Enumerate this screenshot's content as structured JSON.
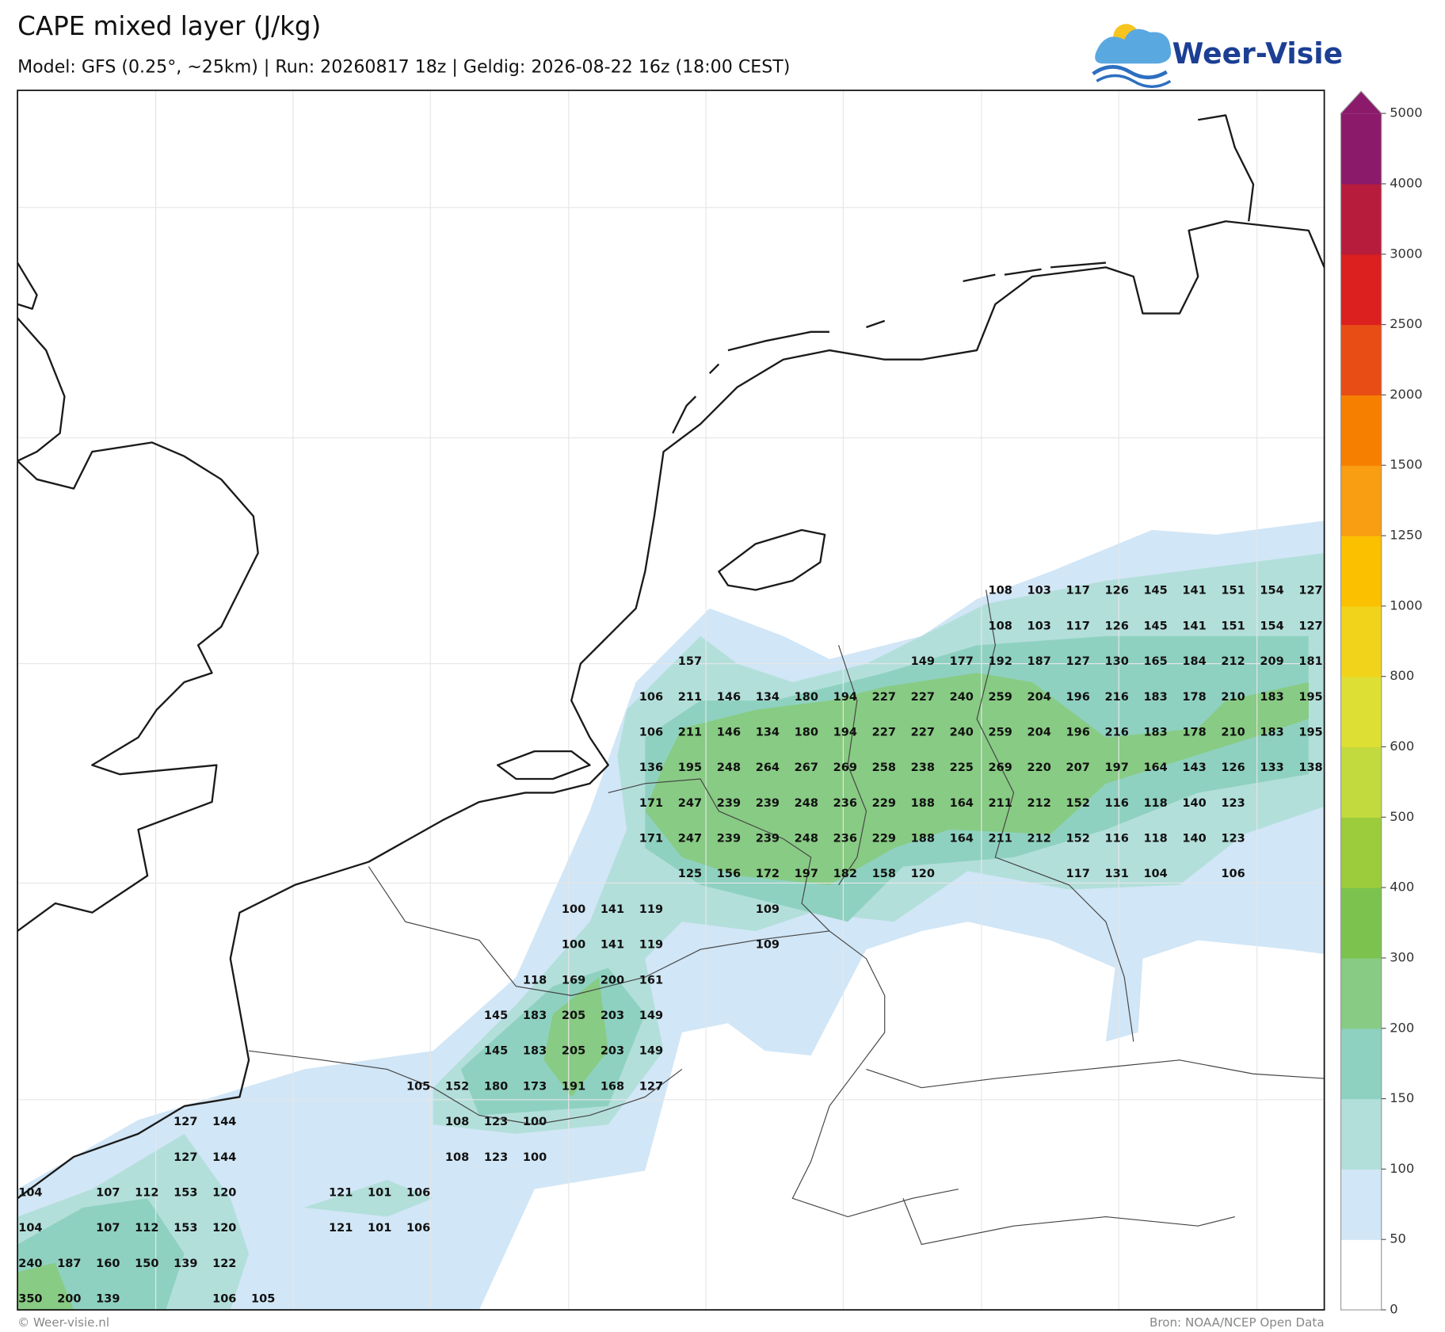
{
  "header": {
    "title": "CAPE mixed layer (J/kg)",
    "subtitle": "Model: GFS (0.25°, ~25km)  |  Run: 20260817 18z  |  Geldig: 2026-08-22 16z (18:00 CEST)"
  },
  "logo": "Weer-Visie",
  "legend": {
    "ticks": [
      0,
      50,
      100,
      150,
      200,
      300,
      400,
      500,
      600,
      800,
      1000,
      1250,
      1500,
      2000,
      2500,
      3000,
      4000,
      5000
    ],
    "colors": [
      "#ffffff",
      "#d1e6f6",
      "#b3dfdb",
      "#8fd1c0",
      "#88cb84",
      "#7bc34e",
      "#9ccc3b",
      "#c3da3f",
      "#dedf34",
      "#f2d31b",
      "#fbc000",
      "#f99d13",
      "#f77f00",
      "#e84d15",
      "#dc1f1f",
      "#b71c3c",
      "#8b1a6b"
    ]
  },
  "values": {
    "rows": [
      [
        null,
        null,
        null,
        null,
        null,
        null,
        null,
        null,
        null,
        null,
        null,
        null,
        null,
        null,
        null,
        null,
        null,
        null,
        null,
        null,
        null,
        null,
        null,
        null,
        null,
        108,
        103,
        117,
        126,
        145,
        141,
        151,
        154,
        127
      ],
      [
        null,
        null,
        null,
        null,
        null,
        null,
        null,
        null,
        null,
        null,
        null,
        null,
        null,
        null,
        null,
        null,
        null,
        null,
        null,
        null,
        null,
        null,
        null,
        null,
        null,
        108,
        103,
        117,
        126,
        145,
        141,
        151,
        154,
        127
      ],
      [
        null,
        null,
        null,
        null,
        null,
        null,
        null,
        null,
        null,
        null,
        null,
        null,
        null,
        null,
        null,
        null,
        null,
        157,
        null,
        null,
        null,
        null,
        null,
        149,
        177,
        192,
        187,
        127,
        130,
        165,
        184,
        212,
        209,
        181
      ],
      [
        null,
        null,
        null,
        null,
        null,
        null,
        null,
        null,
        null,
        null,
        null,
        null,
        null,
        null,
        null,
        null,
        106,
        211,
        146,
        134,
        180,
        194,
        227,
        227,
        240,
        259,
        204,
        196,
        216,
        183,
        178,
        210,
        183,
        195
      ],
      [
        null,
        null,
        null,
        null,
        null,
        null,
        null,
        null,
        null,
        null,
        null,
        null,
        null,
        null,
        null,
        null,
        106,
        211,
        146,
        134,
        180,
        194,
        227,
        227,
        240,
        259,
        204,
        196,
        216,
        183,
        178,
        210,
        183,
        195
      ],
      [
        null,
        null,
        null,
        null,
        null,
        null,
        null,
        null,
        null,
        null,
        null,
        null,
        null,
        null,
        null,
        null,
        136,
        195,
        248,
        264,
        267,
        269,
        258,
        238,
        225,
        269,
        220,
        207,
        197,
        164,
        143,
        126,
        133,
        138
      ],
      [
        null,
        null,
        null,
        null,
        null,
        null,
        null,
        null,
        null,
        null,
        null,
        null,
        null,
        null,
        null,
        null,
        171,
        247,
        239,
        239,
        248,
        236,
        229,
        188,
        164,
        211,
        212,
        152,
        116,
        118,
        140,
        123,
        null,
        null
      ],
      [
        null,
        null,
        null,
        null,
        null,
        null,
        null,
        null,
        null,
        null,
        null,
        null,
        null,
        null,
        null,
        null,
        171,
        247,
        239,
        239,
        248,
        236,
        229,
        188,
        164,
        211,
        212,
        152,
        116,
        118,
        140,
        123,
        null,
        null
      ],
      [
        null,
        null,
        null,
        null,
        null,
        null,
        null,
        null,
        null,
        null,
        null,
        null,
        null,
        null,
        null,
        null,
        null,
        125,
        156,
        172,
        197,
        182,
        158,
        120,
        null,
        null,
        null,
        117,
        131,
        104,
        null,
        106,
        null,
        null
      ],
      [
        null,
        null,
        null,
        null,
        null,
        null,
        null,
        null,
        null,
        null,
        null,
        null,
        null,
        null,
        100,
        141,
        119,
        null,
        null,
        109,
        null,
        null,
        null,
        null,
        null,
        null,
        null,
        null,
        null,
        null,
        null,
        null,
        null,
        null
      ],
      [
        null,
        null,
        null,
        null,
        null,
        null,
        null,
        null,
        null,
        null,
        null,
        null,
        null,
        null,
        100,
        141,
        119,
        null,
        null,
        109,
        null,
        null,
        null,
        null,
        null,
        null,
        null,
        null,
        null,
        null,
        null,
        null,
        null,
        null
      ],
      [
        null,
        null,
        null,
        null,
        null,
        null,
        null,
        null,
        null,
        null,
        null,
        null,
        null,
        118,
        169,
        200,
        161,
        null,
        null,
        null,
        null,
        null,
        null,
        null,
        null,
        null,
        null,
        null,
        null,
        null,
        null,
        null,
        null,
        null
      ],
      [
        null,
        null,
        null,
        null,
        null,
        null,
        null,
        null,
        null,
        null,
        null,
        null,
        145,
        183,
        205,
        203,
        149,
        null,
        null,
        null,
        null,
        null,
        null,
        null,
        null,
        null,
        null,
        null,
        null,
        null,
        null,
        null,
        null,
        null
      ],
      [
        null,
        null,
        null,
        null,
        null,
        null,
        null,
        null,
        null,
        null,
        null,
        null,
        145,
        183,
        205,
        203,
        149,
        null,
        null,
        null,
        null,
        null,
        null,
        null,
        null,
        null,
        null,
        null,
        null,
        null,
        null,
        null,
        null,
        null
      ],
      [
        null,
        null,
        null,
        null,
        null,
        null,
        null,
        null,
        null,
        null,
        105,
        152,
        180,
        173,
        191,
        168,
        127,
        null,
        null,
        null,
        null,
        null,
        null,
        null,
        null,
        null,
        null,
        null,
        null,
        null,
        null,
        null,
        null,
        null
      ],
      [
        null,
        null,
        null,
        null,
        127,
        144,
        null,
        null,
        null,
        null,
        null,
        108,
        123,
        100,
        null,
        null,
        null,
        null,
        null,
        null,
        null,
        null,
        null,
        null,
        null,
        null,
        null,
        null,
        null,
        null,
        null,
        null,
        null,
        null
      ],
      [
        null,
        null,
        null,
        null,
        127,
        144,
        null,
        null,
        null,
        null,
        null,
        108,
        123,
        100,
        null,
        null,
        null,
        null,
        null,
        null,
        null,
        null,
        null,
        null,
        null,
        null,
        null,
        null,
        null,
        null,
        null,
        null,
        null,
        null
      ],
      [
        104,
        null,
        107,
        112,
        153,
        120,
        null,
        null,
        121,
        101,
        106,
        null,
        null,
        null,
        null,
        null,
        null,
        null,
        null,
        null,
        null,
        null,
        null,
        null,
        null,
        null,
        null,
        null,
        null,
        null,
        null,
        null,
        null,
        null
      ],
      [
        104,
        null,
        107,
        112,
        153,
        120,
        null,
        null,
        121,
        101,
        106,
        null,
        null,
        null,
        null,
        null,
        null,
        null,
        null,
        null,
        null,
        null,
        null,
        null,
        null,
        null,
        null,
        null,
        null,
        null,
        null,
        null,
        null,
        null
      ],
      [
        240,
        187,
        160,
        150,
        139,
        122,
        null,
        null,
        null,
        null,
        null,
        null,
        null,
        null,
        null,
        null,
        null,
        null,
        null,
        null,
        null,
        null,
        null,
        null,
        null,
        null,
        null,
        null,
        null,
        null,
        null,
        null,
        null,
        null
      ],
      [
        350,
        200,
        139,
        null,
        null,
        106,
        105,
        null,
        null,
        null,
        null,
        null,
        null,
        null,
        null,
        null,
        null,
        null,
        null,
        null,
        null,
        null,
        null,
        null,
        null,
        null,
        null,
        null,
        null,
        null,
        null,
        null,
        null,
        null
      ]
    ]
  },
  "footer": {
    "left": "© Weer-visie.nl",
    "right": "Bron: NOAA/NCEP Open Data"
  }
}
